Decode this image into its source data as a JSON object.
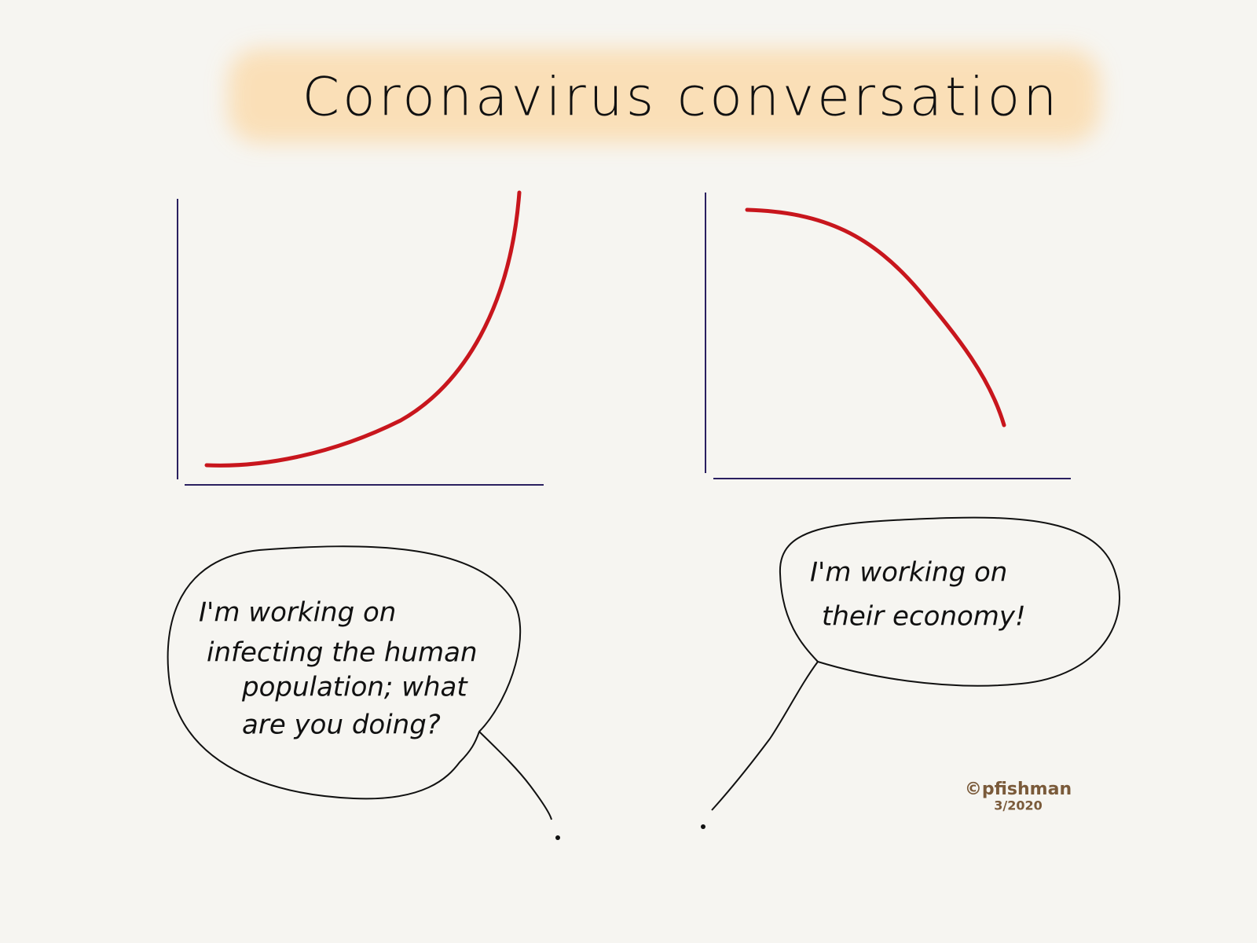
{
  "title": "Coronavirus conversation",
  "bubbles": [
    {
      "lines": [
        "I'm working on",
        "infecting the human",
        "population; what",
        "are you doing?"
      ]
    },
    {
      "lines": [
        "I'm working on",
        "their economy!"
      ]
    }
  ],
  "signature": {
    "name": "©pfishman",
    "date": "3/2020"
  }
}
